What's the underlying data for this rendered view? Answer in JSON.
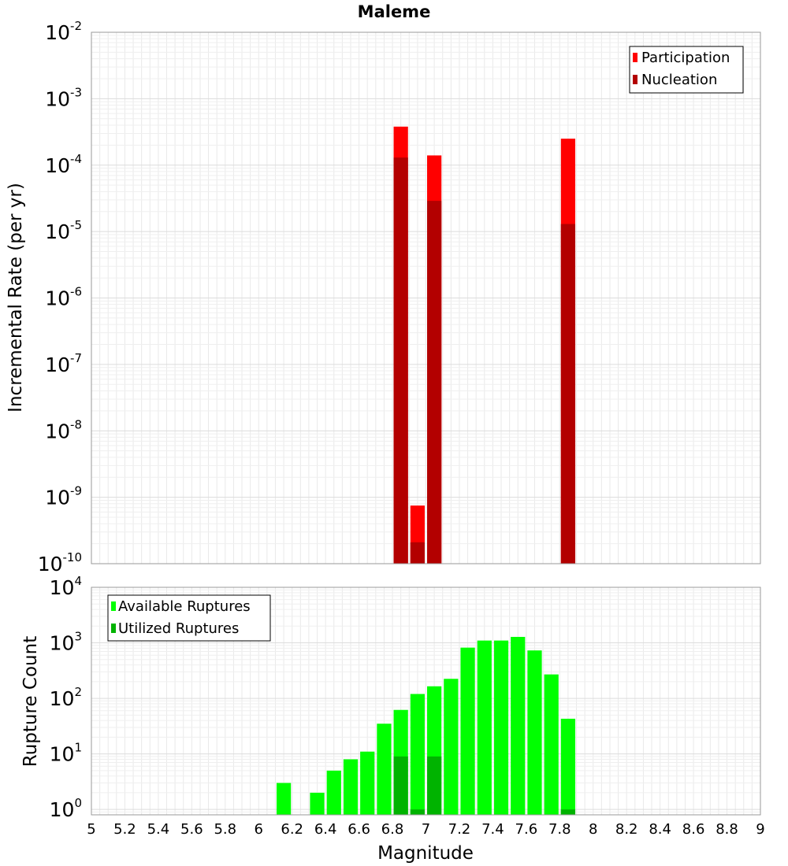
{
  "chart_data": [
    {
      "type": "bar",
      "title": "Maleme",
      "xlabel": "",
      "ylabel": "Incremental Rate (per yr)",
      "yscale": "log",
      "ylim": [
        1e-10,
        0.01
      ],
      "xlim": [
        5,
        9
      ],
      "bar_width": 0.1,
      "grid": true,
      "legend_position": "top-right",
      "y_ticks": [
        {
          "base": "10",
          "exp": "-10",
          "value": 1e-10
        },
        {
          "base": "10",
          "exp": "-9",
          "value": 1e-09
        },
        {
          "base": "10",
          "exp": "-8",
          "value": 1e-08
        },
        {
          "base": "10",
          "exp": "-7",
          "value": 1e-07
        },
        {
          "base": "10",
          "exp": "-6",
          "value": 1e-06
        },
        {
          "base": "10",
          "exp": "-5",
          "value": 1e-05
        },
        {
          "base": "10",
          "exp": "-4",
          "value": 0.0001
        },
        {
          "base": "10",
          "exp": "-3",
          "value": 0.001
        },
        {
          "base": "10",
          "exp": "-2",
          "value": 0.01
        }
      ],
      "series": [
        {
          "name": "Participation",
          "color": "#ff0000",
          "x": [
            6.85,
            6.95,
            7.05,
            7.85
          ],
          "values": [
            0.00038,
            7.5e-10,
            0.00014,
            0.00025
          ]
        },
        {
          "name": "Nucleation",
          "color": "#b30000",
          "x": [
            6.85,
            6.95,
            7.05,
            7.85
          ],
          "values": [
            0.00013,
            2.1e-10,
            2.9e-05,
            1.3e-05
          ]
        }
      ]
    },
    {
      "type": "bar",
      "title": "",
      "xlabel": "Magnitude",
      "ylabel": "Rupture Count",
      "yscale": "log",
      "ylim": [
        0.8,
        10000
      ],
      "xlim": [
        5,
        9
      ],
      "bar_width": 0.1,
      "grid": true,
      "legend_position": "top-left",
      "x_ticks": [
        "5",
        "5.2",
        "5.4",
        "5.6",
        "5.8",
        "6",
        "6.2",
        "6.4",
        "6.6",
        "6.8",
        "7",
        "7.2",
        "7.4",
        "7.6",
        "7.8",
        "8",
        "8.2",
        "8.4",
        "8.6",
        "8.8",
        "9"
      ],
      "y_ticks": [
        {
          "base": "10",
          "exp": "0",
          "value": 1
        },
        {
          "base": "10",
          "exp": "1",
          "value": 10
        },
        {
          "base": "10",
          "exp": "2",
          "value": 100
        },
        {
          "base": "10",
          "exp": "3",
          "value": 1000
        },
        {
          "base": "10",
          "exp": "4",
          "value": 10000
        }
      ],
      "series": [
        {
          "name": "Available Ruptures",
          "color": "#00ff00",
          "x": [
            6.15,
            6.35,
            6.45,
            6.55,
            6.65,
            6.75,
            6.85,
            6.95,
            7.05,
            7.15,
            7.25,
            7.35,
            7.45,
            7.55,
            7.65,
            7.75,
            7.85
          ],
          "values": [
            3,
            2,
            5,
            8,
            11,
            35,
            62,
            120,
            165,
            225,
            820,
            1100,
            1100,
            1280,
            730,
            270,
            43
          ]
        },
        {
          "name": "Utilized Ruptures",
          "color": "#00b300",
          "x": [
            6.85,
            6.95,
            7.05,
            7.85
          ],
          "values": [
            9,
            1,
            9,
            1
          ]
        }
      ]
    }
  ]
}
